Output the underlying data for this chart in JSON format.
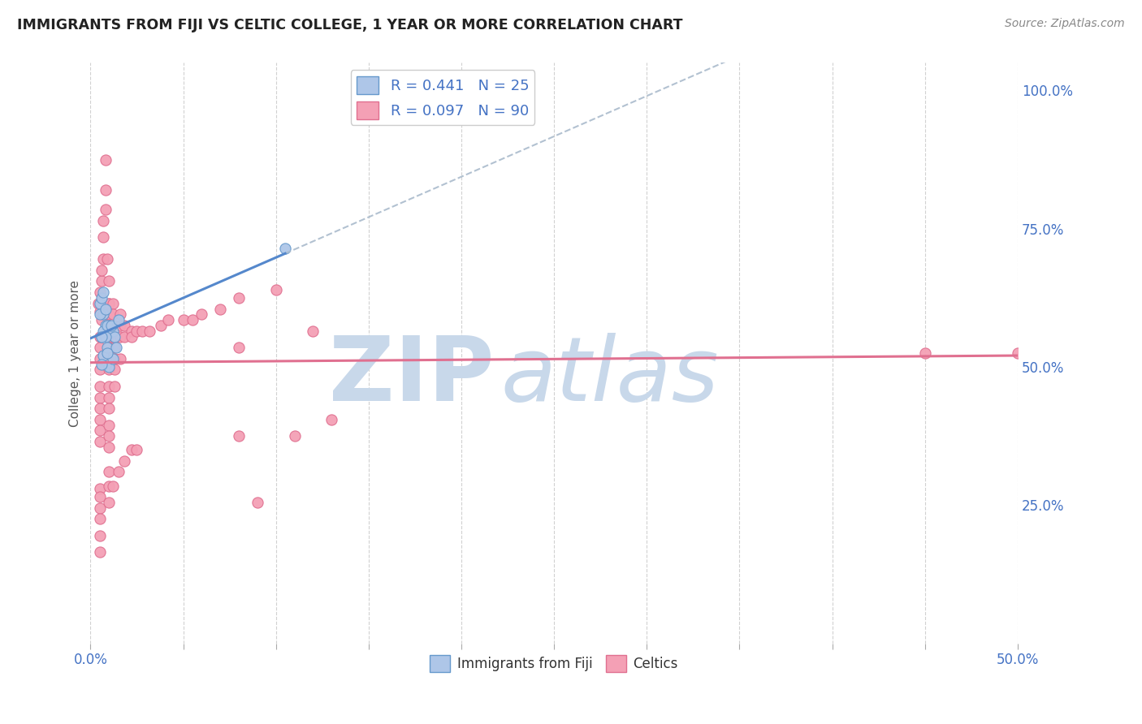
{
  "title": "IMMIGRANTS FROM FIJI VS CELTIC COLLEGE, 1 YEAR OR MORE CORRELATION CHART",
  "source": "Source: ZipAtlas.com",
  "ylabel": "College, 1 year or more",
  "xlim": [
    0.0,
    0.5
  ],
  "ylim": [
    0.0,
    1.05
  ],
  "ytick_right_vals": [
    0.25,
    0.5,
    0.75,
    1.0
  ],
  "ytick_right_labels": [
    "25.0%",
    "50.0%",
    "75.0%",
    "100.0%"
  ],
  "fiji_R": 0.441,
  "fiji_N": 25,
  "celtics_R": 0.097,
  "celtics_N": 90,
  "fiji_color": "#aec6e8",
  "fiji_edge": "#6699cc",
  "celtics_color": "#f4a0b5",
  "celtics_edge": "#e07090",
  "fiji_line_color": "#5588cc",
  "celtics_line_color": "#e07090",
  "dashed_line_color": "#aabbcc",
  "watermark_zip": "ZIP",
  "watermark_atlas": "atlas",
  "watermark_color": "#c8d8ea",
  "title_color": "#222222",
  "axis_color": "#4472c4",
  "grid_color": "#cccccc",
  "fiji_x": [
    0.005,
    0.007,
    0.008,
    0.01,
    0.005,
    0.006,
    0.007,
    0.012,
    0.009,
    0.011,
    0.013,
    0.015,
    0.008,
    0.006,
    0.007,
    0.009,
    0.01,
    0.105,
    0.012,
    0.014,
    0.006,
    0.007,
    0.008,
    0.009,
    0.006
  ],
  "fiji_y": [
    0.615,
    0.595,
    0.575,
    0.575,
    0.595,
    0.555,
    0.565,
    0.565,
    0.575,
    0.575,
    0.555,
    0.585,
    0.555,
    0.555,
    0.52,
    0.535,
    0.5,
    0.715,
    0.515,
    0.535,
    0.625,
    0.635,
    0.605,
    0.525,
    0.505
  ],
  "celtics_x": [
    0.004,
    0.005,
    0.006,
    0.005,
    0.006,
    0.006,
    0.007,
    0.007,
    0.007,
    0.008,
    0.008,
    0.008,
    0.005,
    0.005,
    0.005,
    0.005,
    0.005,
    0.005,
    0.005,
    0.005,
    0.005,
    0.005,
    0.009,
    0.01,
    0.01,
    0.01,
    0.01,
    0.01,
    0.01,
    0.01,
    0.01,
    0.01,
    0.01,
    0.01,
    0.01,
    0.01,
    0.01,
    0.01,
    0.01,
    0.01,
    0.01,
    0.012,
    0.012,
    0.013,
    0.013,
    0.013,
    0.013,
    0.013,
    0.013,
    0.016,
    0.016,
    0.016,
    0.016,
    0.018,
    0.018,
    0.022,
    0.022,
    0.025,
    0.028,
    0.032,
    0.038,
    0.042,
    0.05,
    0.055,
    0.06,
    0.07,
    0.08,
    0.45,
    0.005,
    0.005,
    0.005,
    0.005,
    0.005,
    0.005,
    0.01,
    0.01,
    0.01,
    0.012,
    0.015,
    0.018,
    0.022,
    0.025,
    0.08,
    0.09,
    0.1,
    0.11,
    0.12,
    0.13,
    0.08,
    0.5
  ],
  "celtics_y": [
    0.615,
    0.6,
    0.585,
    0.635,
    0.655,
    0.675,
    0.695,
    0.735,
    0.765,
    0.785,
    0.82,
    0.875,
    0.555,
    0.535,
    0.515,
    0.495,
    0.465,
    0.445,
    0.425,
    0.405,
    0.385,
    0.365,
    0.695,
    0.655,
    0.615,
    0.595,
    0.575,
    0.555,
    0.535,
    0.515,
    0.495,
    0.465,
    0.445,
    0.425,
    0.395,
    0.375,
    0.355,
    0.615,
    0.595,
    0.575,
    0.535,
    0.615,
    0.595,
    0.575,
    0.555,
    0.535,
    0.515,
    0.495,
    0.465,
    0.595,
    0.575,
    0.555,
    0.515,
    0.575,
    0.555,
    0.565,
    0.555,
    0.565,
    0.565,
    0.565,
    0.575,
    0.585,
    0.585,
    0.585,
    0.595,
    0.605,
    0.625,
    0.525,
    0.28,
    0.265,
    0.245,
    0.225,
    0.195,
    0.165,
    0.31,
    0.285,
    0.255,
    0.285,
    0.31,
    0.33,
    0.35,
    0.35,
    0.375,
    0.255,
    0.64,
    0.375,
    0.565,
    0.405,
    0.535,
    0.525
  ],
  "legend_border_color": "#cccccc"
}
